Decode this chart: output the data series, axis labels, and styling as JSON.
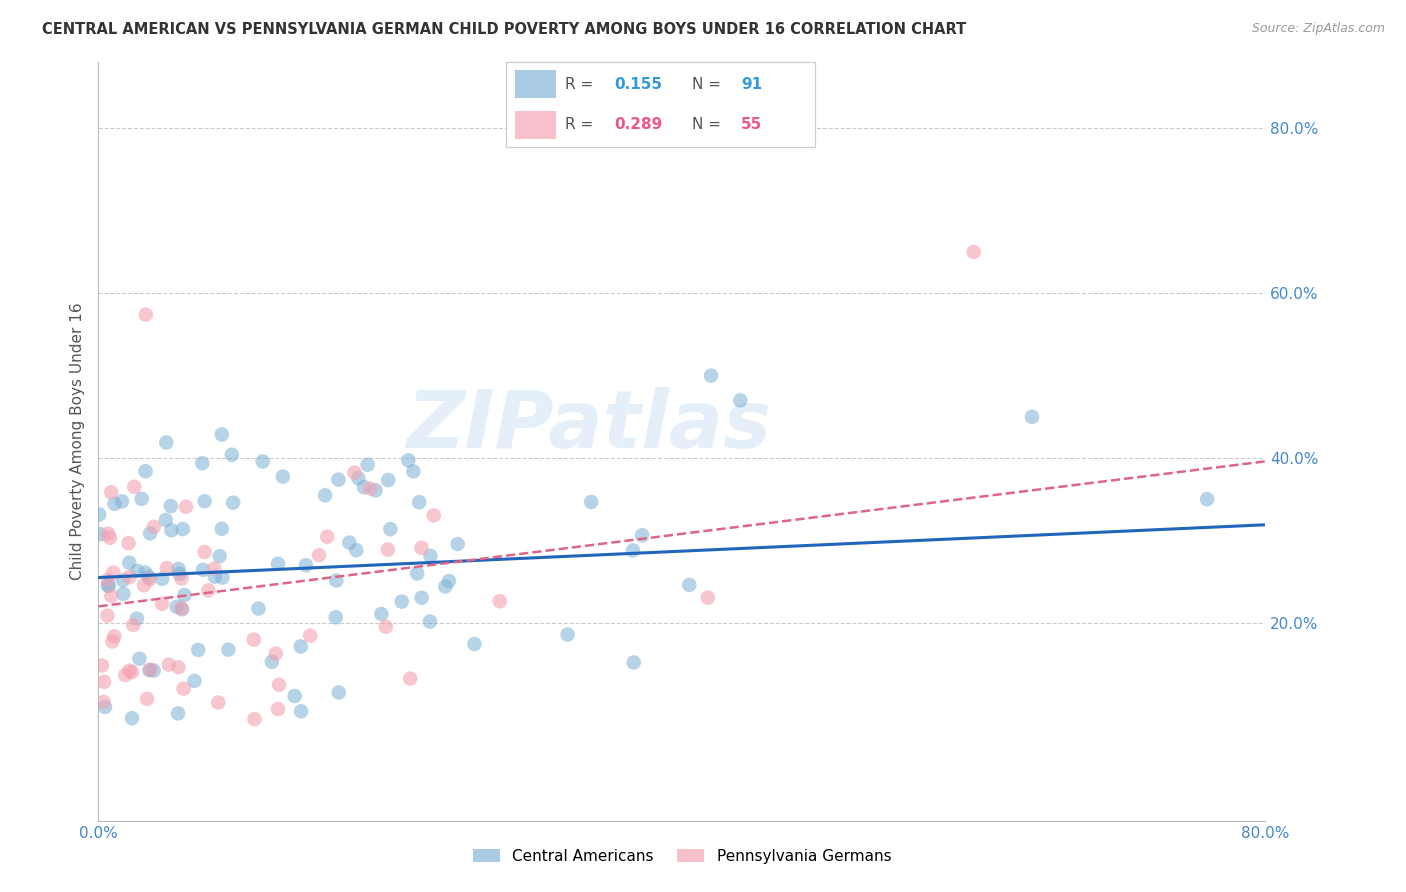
{
  "title": "CENTRAL AMERICAN VS PENNSYLVANIA GERMAN CHILD POVERTY AMONG BOYS UNDER 16 CORRELATION CHART",
  "source": "Source: ZipAtlas.com",
  "ylabel": "Child Poverty Among Boys Under 16",
  "ytick_labels": [
    "20.0%",
    "40.0%",
    "60.0%",
    "80.0%"
  ],
  "ytick_values": [
    0.2,
    0.4,
    0.6,
    0.8
  ],
  "xlim": [
    0.0,
    0.8
  ],
  "ylim": [
    -0.04,
    0.88
  ],
  "color_blue": "#7BAFD4",
  "color_pink": "#F4A0B0",
  "color_line_blue": "#2266BB",
  "color_line_pink": "#DD6688",
  "color_text_blue": "#3399DD",
  "color_text_pink": "#EE5588",
  "color_axis": "#4488CC",
  "watermark": "ZIPatlas",
  "seed": 12345,
  "R1": 0.155,
  "N1": 91,
  "R2": 0.289,
  "N2": 55,
  "blue_intercept": 0.255,
  "blue_slope": 0.08,
  "pink_intercept": 0.22,
  "pink_slope": 0.22
}
